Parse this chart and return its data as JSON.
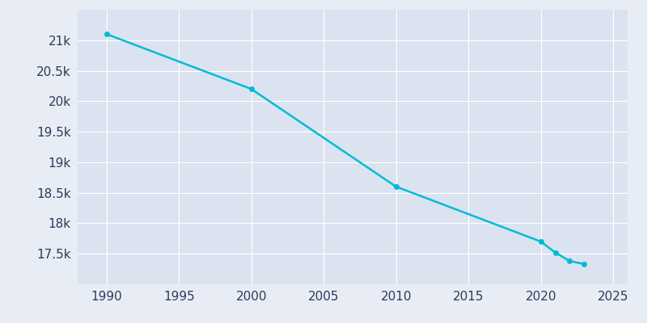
{
  "years": [
    1990,
    2000,
    2010,
    2020,
    2021,
    2022,
    2023
  ],
  "population": [
    21100,
    20200,
    18600,
    17700,
    17520,
    17380,
    17330
  ],
  "line_color": "#00bcd4",
  "marker_color": "#00bcd4",
  "bg_color": "#e8edf5",
  "plot_bg_color": "#dce3f0",
  "grid_color": "#ffffff",
  "tick_color": "#2d3a5a",
  "ylim": [
    17000,
    21500
  ],
  "xlim": [
    1988,
    2026
  ],
  "yticks": [
    17500,
    18000,
    18500,
    19000,
    19500,
    20000,
    20500,
    21000
  ],
  "ytick_labels": [
    "17.5k",
    "18k",
    "18.5k",
    "19k",
    "19.5k",
    "20k",
    "20.5k",
    "21k"
  ],
  "xticks": [
    1990,
    1995,
    2000,
    2005,
    2010,
    2015,
    2020,
    2025
  ],
  "marker_size": 4,
  "line_width": 1.8,
  "figsize": [
    8.0,
    4.0
  ],
  "dpi": 100
}
